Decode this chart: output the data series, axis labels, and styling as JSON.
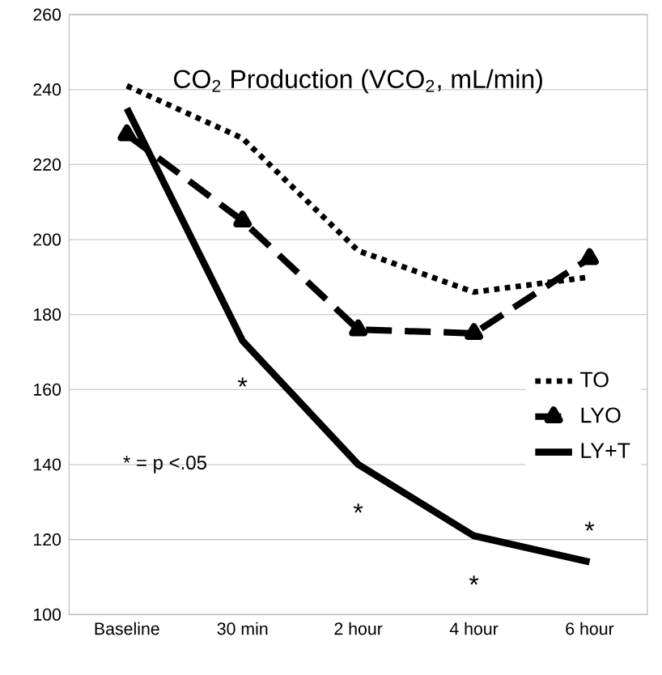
{
  "chart_data": {
    "type": "line",
    "title": "CO$_{2}$ Production (VCO$_{2}$, mL/min)",
    "categories": [
      "Baseline",
      "30 min",
      "2 hour",
      "4 hour",
      "6 hour"
    ],
    "series": [
      {
        "name": "TO",
        "color": "#000000",
        "values": [
          241,
          227,
          197,
          186,
          190
        ],
        "line_style": "dotted",
        "marker": "none"
      },
      {
        "name": "LYO",
        "color": "#000000",
        "values": [
          228,
          205,
          176,
          175,
          195
        ],
        "line_style": "dashed",
        "marker": "triangle"
      },
      {
        "name": "LY+T",
        "color": "#000000",
        "values": [
          235,
          173,
          140,
          121,
          114
        ],
        "line_style": "solid",
        "marker": "none"
      }
    ],
    "ylim": [
      100,
      260
    ],
    "yticks": [
      100,
      120,
      140,
      160,
      180,
      200,
      220,
      240,
      260
    ],
    "grid": "y",
    "legend": "right",
    "annotations": [
      "*",
      "*",
      "*",
      "*",
      "* = p <.05"
    ]
  }
}
